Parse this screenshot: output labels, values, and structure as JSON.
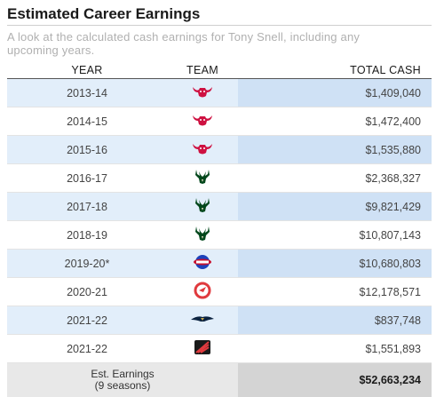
{
  "header": {
    "title": "Estimated Career Earnings",
    "subtitle": "A look at the calculated cash earnings for Tony Snell, including any upcoming years."
  },
  "table": {
    "columns": [
      "YEAR",
      "TEAM",
      "TOTAL CASH"
    ],
    "rows": [
      {
        "year": "2013-14",
        "team_icon": "bulls-logo-icon",
        "cash": "$1,409,040",
        "shaded": true
      },
      {
        "year": "2014-15",
        "team_icon": "bulls-logo-icon",
        "cash": "$1,472,400",
        "shaded": false
      },
      {
        "year": "2015-16",
        "team_icon": "bulls-logo-icon",
        "cash": "$1,535,880",
        "shaded": true
      },
      {
        "year": "2016-17",
        "team_icon": "bucks-logo-icon",
        "cash": "$2,368,327",
        "shaded": false
      },
      {
        "year": "2017-18",
        "team_icon": "bucks-logo-icon",
        "cash": "$9,821,429",
        "shaded": true
      },
      {
        "year": "2018-19",
        "team_icon": "bucks-logo-icon",
        "cash": "$10,807,143",
        "shaded": false
      },
      {
        "year": "2019-20*",
        "team_icon": "pistons-logo-icon",
        "cash": "$10,680,803",
        "shaded": true
      },
      {
        "year": "2020-21",
        "team_icon": "hawks-logo-icon",
        "cash": "$12,178,571",
        "shaded": false
      },
      {
        "year": "2021-22",
        "team_icon": "pelicans-logo-icon",
        "cash": "$837,748",
        "shaded": true
      },
      {
        "year": "2021-22",
        "team_icon": "blazers-logo-icon",
        "cash": "$1,551,893",
        "shaded": false
      }
    ],
    "total": {
      "label_line1": "Est. Earnings",
      "label_line2": "(9 seasons)",
      "cash": "$52,663,234"
    }
  },
  "colors": {
    "row_shade": "#e2eefa",
    "cash_shade": "#cfe1f5",
    "bulls": "#ce1141",
    "bucks": "#00471b",
    "pistons": "#c8102e",
    "hawks": "#e03a3e",
    "pelicans": "#0c2340",
    "blazers": "#e03a3e"
  }
}
